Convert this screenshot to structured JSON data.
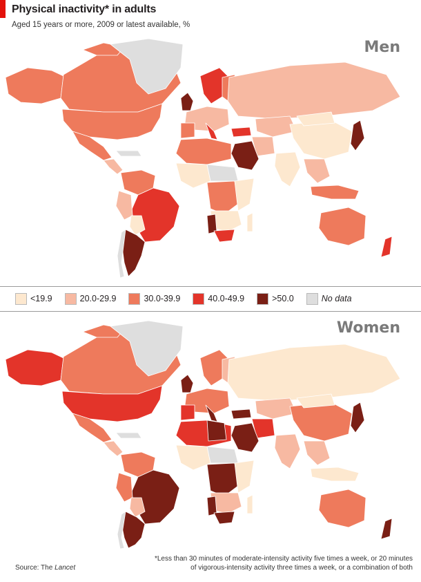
{
  "header": {
    "title": "Physical inactivity* in adults",
    "subtitle": "Aged 15 years or more, 2009 or latest available, %"
  },
  "panels": {
    "men_label": "Men",
    "women_label": "Women"
  },
  "legend": {
    "items": [
      {
        "label": "<19.9",
        "color": "#fde8cf"
      },
      {
        "label": "20.0-29.9",
        "color": "#f7b9a2"
      },
      {
        "label": "30.0-39.9",
        "color": "#ee7a5c"
      },
      {
        "label": "40.0-49.9",
        "color": "#e3342a"
      },
      {
        "label": ">50.0",
        "color": "#7a1f15"
      },
      {
        "label": "No data",
        "color": "#dedede"
      }
    ]
  },
  "map_colors": {
    "light": "#fde8cf",
    "pale": "#f7b9a2",
    "mid": "#ee7a5c",
    "red": "#e3342a",
    "dark": "#7a1f15",
    "nodata": "#dedede"
  },
  "source": {
    "prefix": "Source: The ",
    "name": "Lancet"
  },
  "footnote": {
    "line1": "*Less than 30 minutes of moderate-intensity activity five times a week, or 20 minutes",
    "line2": "of vigorous-intensity activity three times a week, or a combination of both"
  }
}
